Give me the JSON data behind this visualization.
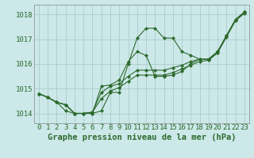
{
  "background_color": "#cce8e8",
  "grid_color": "#aacccc",
  "line_color": "#2d6a2d",
  "marker_color": "#2d6a2d",
  "xlabel": "Graphe pression niveau de la mer (hPa)",
  "xlabel_fontsize": 7.5,
  "tick_fontsize": 6.5,
  "ytick_labels": [
    1014,
    1015,
    1016,
    1017,
    1018
  ],
  "xtick_labels": [
    0,
    1,
    2,
    3,
    4,
    5,
    6,
    7,
    8,
    9,
    10,
    11,
    12,
    13,
    14,
    15,
    16,
    17,
    18,
    19,
    20,
    21,
    22,
    23
  ],
  "ylim": [
    1013.6,
    1018.4
  ],
  "xlim": [
    -0.5,
    23.5
  ],
  "series": [
    [
      1014.8,
      1014.65,
      1014.45,
      1014.1,
      1014.0,
      1014.0,
      1014.0,
      1014.1,
      1014.85,
      1014.85,
      1016.0,
      1017.05,
      1017.45,
      1017.45,
      1017.05,
      1017.05,
      1016.5,
      1016.35,
      1016.2,
      1016.2,
      1016.5,
      1017.15,
      1017.8,
      1018.1
    ],
    [
      1014.8,
      1014.65,
      1014.45,
      1014.35,
      1014.0,
      1014.0,
      1014.0,
      1015.1,
      1015.15,
      1015.35,
      1016.1,
      1016.5,
      1016.35,
      1015.5,
      1015.5,
      1015.55,
      1015.7,
      1016.0,
      1016.2,
      1016.2,
      1016.5,
      1017.15,
      1017.8,
      1018.1
    ],
    [
      1014.8,
      1014.65,
      1014.45,
      1014.35,
      1014.0,
      1014.0,
      1014.05,
      1014.85,
      1015.1,
      1015.2,
      1015.5,
      1015.75,
      1015.75,
      1015.75,
      1015.75,
      1015.85,
      1015.95,
      1016.1,
      1016.2,
      1016.2,
      1016.5,
      1017.15,
      1017.8,
      1018.1
    ],
    [
      1014.8,
      1014.65,
      1014.45,
      1014.35,
      1014.0,
      1014.0,
      1014.05,
      1014.6,
      1014.9,
      1015.05,
      1015.3,
      1015.55,
      1015.55,
      1015.55,
      1015.55,
      1015.65,
      1015.8,
      1015.95,
      1016.1,
      1016.15,
      1016.45,
      1017.1,
      1017.75,
      1018.05
    ]
  ]
}
